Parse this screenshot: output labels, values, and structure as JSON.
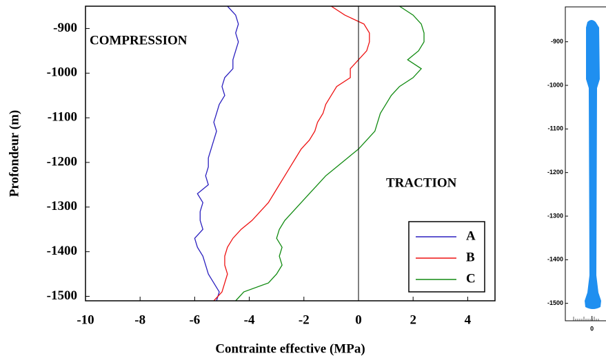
{
  "chart_data": [
    {
      "type": "line",
      "xlabel": "Contrainte effective (MPa)",
      "ylabel": "Profondeur (m)",
      "annotations": [
        "COMPRESSION",
        "TRACTION"
      ],
      "xlim": [
        -10,
        5
      ],
      "xticks": [
        -10,
        -8,
        -6,
        -4,
        -2,
        0,
        2,
        4
      ],
      "ylim": [
        -1510,
        -850
      ],
      "yticks": [
        -900,
        -1000,
        -1100,
        -1200,
        -1300,
        -1400,
        -1500
      ],
      "legend": "lower right",
      "y": [
        -850,
        -870,
        -890,
        -910,
        -930,
        -950,
        -970,
        -990,
        -1010,
        -1030,
        -1050,
        -1070,
        -1090,
        -1110,
        -1130,
        -1150,
        -1170,
        -1190,
        -1210,
        -1230,
        -1250,
        -1270,
        -1290,
        -1310,
        -1330,
        -1350,
        -1370,
        -1390,
        -1410,
        -1430,
        -1450,
        -1470,
        -1490,
        -1510
      ],
      "series": [
        {
          "name": "A",
          "color": "#2a1fbf",
          "values": [
            -4.8,
            -4.5,
            -4.4,
            -4.5,
            -4.4,
            -4.5,
            -4.6,
            -4.6,
            -4.9,
            -5.0,
            -4.9,
            -5.1,
            -5.2,
            -5.3,
            -5.2,
            -5.3,
            -5.4,
            -5.5,
            -5.5,
            -5.6,
            -5.5,
            -5.9,
            -5.7,
            -5.8,
            -5.8,
            -5.7,
            -6.0,
            -5.9,
            -5.7,
            -5.6,
            -5.5,
            -5.3,
            -5.1,
            -5.2
          ]
        },
        {
          "name": "B",
          "color": "#ee1111",
          "values": [
            -1.0,
            -0.5,
            0.2,
            0.4,
            0.4,
            0.3,
            0.0,
            -0.3,
            -0.3,
            -0.8,
            -1.0,
            -1.2,
            -1.3,
            -1.5,
            -1.6,
            -1.8,
            -2.1,
            -2.3,
            -2.5,
            -2.7,
            -2.9,
            -3.1,
            -3.3,
            -3.6,
            -3.9,
            -4.3,
            -4.6,
            -4.8,
            -4.9,
            -4.9,
            -4.8,
            -4.9,
            -5.0,
            -5.3
          ]
        },
        {
          "name": "C",
          "color": "#108a10",
          "values": [
            1.5,
            2.0,
            2.3,
            2.4,
            2.4,
            2.2,
            1.8,
            2.3,
            2.0,
            1.5,
            1.2,
            1.0,
            0.8,
            0.7,
            0.6,
            0.3,
            0.0,
            -0.4,
            -0.8,
            -1.2,
            -1.5,
            -1.8,
            -2.1,
            -2.4,
            -2.7,
            -2.9,
            -3.0,
            -2.8,
            -2.9,
            -2.8,
            -3.0,
            -3.3,
            -4.2,
            -4.5
          ]
        }
      ]
    },
    {
      "type": "profile",
      "xlim": [
        -1,
        0.5
      ],
      "xticks": [
        0
      ],
      "ylim": [
        -1540,
        -820
      ],
      "yticks": [
        -900,
        -1000,
        -1100,
        -1200,
        -1300,
        -1400,
        -1500
      ]
    }
  ]
}
